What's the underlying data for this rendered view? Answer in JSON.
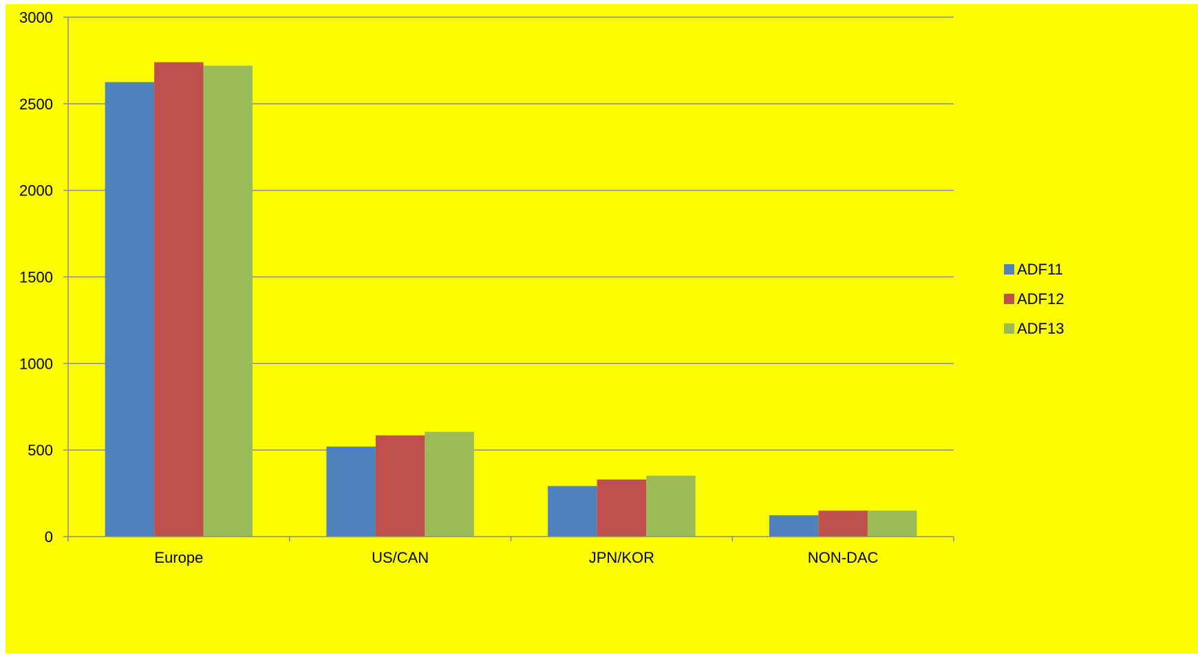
{
  "chart_data": {
    "type": "bar",
    "categories": [
      "Europe",
      "US/CAN",
      "JPN/KOR",
      "NON-DAC"
    ],
    "series": [
      {
        "name": "ADF11",
        "color": "#4f81bd",
        "values": [
          2625,
          520,
          292,
          123
        ]
      },
      {
        "name": "ADF12",
        "color": "#c0504d",
        "values": [
          2740,
          585,
          330,
          150
        ]
      },
      {
        "name": "ADF13",
        "color": "#9bbb59",
        "values": [
          2720,
          605,
          352,
          150
        ]
      }
    ],
    "ylim": [
      0,
      3000
    ],
    "yticks": [
      0,
      500,
      1000,
      1500,
      2000,
      2500,
      3000
    ],
    "grid": true,
    "legend_position": "right",
    "background_color": "#ffff00",
    "gridline_color": "#8c8c8c",
    "title": "",
    "xlabel": "",
    "ylabel": ""
  }
}
